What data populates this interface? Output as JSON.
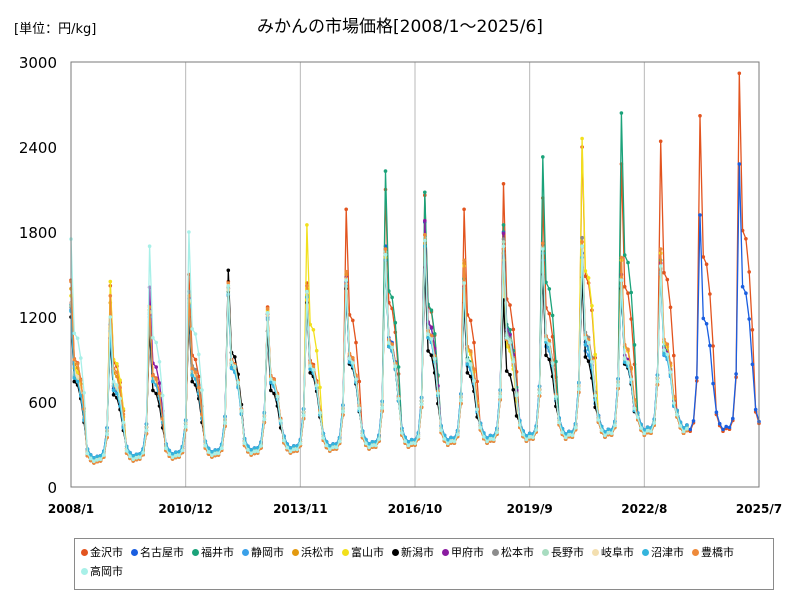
{
  "unit_label": "[単位：円/kg]",
  "chart_data": {
    "type": "line",
    "title": "みかんの市場価格[2008/1～2025/6]",
    "xlabel": "",
    "ylabel": "",
    "ylim": [
      0,
      3000
    ],
    "yticks": [
      0,
      600,
      1200,
      1800,
      2400,
      3000
    ],
    "xticks": [
      "2008/1",
      "2010/12",
      "2013/11",
      "2016/10",
      "2019/9",
      "2022/8",
      "2025/7"
    ],
    "grid": "vertical",
    "legend_position": "bottom",
    "x_start": "2008/1",
    "x_end": "2025/7",
    "series": [
      {
        "name": "金沢市",
        "color": "#e2541f",
        "peaks": [
          [
            2008,
            1460
          ],
          [
            2009,
            1420
          ],
          [
            2010,
            1280
          ],
          [
            2011,
            1500
          ],
          [
            2012,
            1450
          ],
          [
            2013,
            1270
          ],
          [
            2014,
            1440
          ],
          [
            2015,
            1960
          ],
          [
            2016,
            2100
          ],
          [
            2017,
            2060
          ],
          [
            2018,
            1960
          ],
          [
            2019,
            2140
          ],
          [
            2020,
            2040
          ],
          [
            2021,
            2400
          ],
          [
            2022,
            2280
          ],
          [
            2023,
            2440
          ],
          [
            2024,
            2620
          ],
          [
            2025,
            2920
          ]
        ]
      },
      {
        "name": "名古屋市",
        "color": "#1a5ee0",
        "peaks": [
          [
            2008,
            1290
          ],
          [
            2009,
            1120
          ],
          [
            2010,
            1220
          ],
          [
            2011,
            1300
          ],
          [
            2012,
            1400
          ],
          [
            2013,
            1200
          ],
          [
            2014,
            1380
          ],
          [
            2015,
            1450
          ],
          [
            2016,
            1700
          ],
          [
            2017,
            1870
          ],
          [
            2018,
            1400
          ],
          [
            2019,
            1800
          ],
          [
            2020,
            1700
          ],
          [
            2021,
            1650
          ],
          [
            2022,
            1470
          ],
          [
            2023,
            1560
          ],
          [
            2024,
            1920
          ],
          [
            2025,
            2280
          ]
        ]
      },
      {
        "name": "福井市",
        "color": "#1ba37a",
        "peaks": [
          [
            2008,
            1280
          ],
          [
            2009,
            1180
          ],
          [
            2010,
            1250
          ],
          [
            2011,
            1300
          ],
          [
            2012,
            1380
          ],
          [
            2013,
            1220
          ],
          [
            2014,
            1360
          ],
          [
            2015,
            1470
          ],
          [
            2016,
            2230
          ],
          [
            2017,
            2080
          ],
          [
            2018,
            1470
          ],
          [
            2019,
            1850
          ],
          [
            2020,
            2330
          ],
          [
            2021,
            1700
          ],
          [
            2022,
            2640
          ],
          [
            2023,
            1600
          ]
        ]
      },
      {
        "name": "静岡市",
        "color": "#3aa0e8",
        "peaks": [
          [
            2008,
            1250
          ],
          [
            2009,
            1100
          ],
          [
            2010,
            1200
          ],
          [
            2011,
            1280
          ],
          [
            2012,
            1350
          ],
          [
            2013,
            1180
          ],
          [
            2014,
            1350
          ],
          [
            2015,
            1400
          ],
          [
            2016,
            1600
          ],
          [
            2017,
            1700
          ],
          [
            2018,
            1380
          ],
          [
            2019,
            1650
          ],
          [
            2020,
            1600
          ],
          [
            2021,
            1550
          ],
          [
            2022,
            1400
          ],
          [
            2023,
            1500
          ]
        ]
      },
      {
        "name": "浜松市",
        "color": "#e39a10",
        "peaks": [
          [
            2008,
            1400
          ],
          [
            2009,
            1300
          ],
          [
            2010,
            1250
          ],
          [
            2011,
            1330
          ],
          [
            2012,
            1420
          ],
          [
            2013,
            1250
          ],
          [
            2014,
            1400
          ],
          [
            2015,
            1500
          ],
          [
            2016,
            1650
          ],
          [
            2017,
            1750
          ],
          [
            2018,
            1580
          ],
          [
            2019,
            1650
          ],
          [
            2020,
            1700
          ],
          [
            2021,
            1700
          ],
          [
            2022,
            1600
          ],
          [
            2023,
            1650
          ]
        ]
      },
      {
        "name": "富山市",
        "color": "#f2e01c",
        "peaks": [
          [
            2008,
            1350
          ],
          [
            2009,
            1450
          ],
          [
            2010,
            1250
          ],
          [
            2011,
            1300
          ],
          [
            2012,
            1400
          ],
          [
            2013,
            1240
          ],
          [
            2014,
            1850
          ],
          [
            2015,
            1480
          ],
          [
            2016,
            1620
          ],
          [
            2017,
            1720
          ],
          [
            2018,
            1560
          ],
          [
            2019,
            1600
          ],
          [
            2020,
            1650
          ],
          [
            2021,
            2460
          ],
          [
            2022,
            1600
          ],
          [
            2023,
            1650
          ]
        ]
      },
      {
        "name": "新潟市",
        "color": "#000000",
        "peaks": [
          [
            2008,
            1200
          ],
          [
            2009,
            1050
          ],
          [
            2010,
            1100
          ],
          [
            2011,
            1200
          ],
          [
            2012,
            1530
          ],
          [
            2013,
            1100
          ],
          [
            2014,
            1300
          ],
          [
            2015,
            1400
          ],
          [
            2016,
            1600
          ],
          [
            2017,
            1550
          ],
          [
            2018,
            1300
          ],
          [
            2019,
            1320
          ],
          [
            2020,
            1500
          ],
          [
            2021,
            1480
          ],
          [
            2022,
            1400
          ],
          [
            2023,
            1550
          ]
        ]
      },
      {
        "name": "甲府市",
        "color": "#8a1ba0",
        "peaks": [
          [
            2008,
            1300
          ],
          [
            2009,
            1150
          ],
          [
            2010,
            1410
          ],
          [
            2011,
            1330
          ],
          [
            2012,
            1400
          ],
          [
            2013,
            1220
          ],
          [
            2014,
            1380
          ],
          [
            2015,
            1480
          ],
          [
            2016,
            1680
          ],
          [
            2017,
            1880
          ],
          [
            2018,
            1420
          ],
          [
            2019,
            1790
          ],
          [
            2020,
            1720
          ],
          [
            2021,
            1690
          ],
          [
            2022,
            1500
          ],
          [
            2023,
            1580
          ]
        ]
      },
      {
        "name": "松本市",
        "color": "#8c8c8c",
        "peaks": [
          [
            2008,
            1270
          ],
          [
            2009,
            1150
          ],
          [
            2010,
            1230
          ],
          [
            2011,
            1380
          ],
          [
            2012,
            1410
          ],
          [
            2013,
            1220
          ],
          [
            2014,
            1380
          ],
          [
            2015,
            1470
          ],
          [
            2016,
            1650
          ],
          [
            2017,
            1780
          ],
          [
            2018,
            1450
          ],
          [
            2019,
            1750
          ],
          [
            2020,
            1700
          ],
          [
            2021,
            1760
          ],
          [
            2022,
            1450
          ],
          [
            2023,
            1540
          ]
        ]
      },
      {
        "name": "長野市",
        "color": "#a8dcc0",
        "peaks": [
          [
            2008,
            1280
          ],
          [
            2009,
            1160
          ],
          [
            2010,
            1240
          ],
          [
            2011,
            1320
          ],
          [
            2012,
            1400
          ],
          [
            2013,
            1230
          ],
          [
            2014,
            1370
          ],
          [
            2015,
            1460
          ],
          [
            2016,
            1660
          ],
          [
            2017,
            1760
          ],
          [
            2018,
            1450
          ],
          [
            2019,
            1730
          ],
          [
            2020,
            1690
          ],
          [
            2021,
            1700
          ],
          [
            2022,
            1460
          ],
          [
            2023,
            1550
          ]
        ]
      },
      {
        "name": "岐阜市",
        "color": "#f3dfb0",
        "peaks": [
          [
            2008,
            1300
          ],
          [
            2009,
            1180
          ],
          [
            2010,
            1230
          ],
          [
            2011,
            1310
          ],
          [
            2012,
            1390
          ],
          [
            2013,
            1210
          ],
          [
            2014,
            1370
          ],
          [
            2015,
            1470
          ],
          [
            2016,
            1640
          ],
          [
            2017,
            1740
          ],
          [
            2018,
            1430
          ],
          [
            2019,
            1700
          ],
          [
            2020,
            1680
          ],
          [
            2021,
            1690
          ],
          [
            2022,
            1470
          ],
          [
            2023,
            1560
          ]
        ]
      },
      {
        "name": "沼津市",
        "color": "#34b4dc",
        "peaks": [
          [
            2008,
            1240
          ],
          [
            2009,
            1100
          ],
          [
            2010,
            1200
          ],
          [
            2011,
            1270
          ],
          [
            2012,
            1360
          ],
          [
            2013,
            1190
          ],
          [
            2014,
            1340
          ],
          [
            2015,
            1420
          ],
          [
            2016,
            1600
          ],
          [
            2017,
            1700
          ],
          [
            2018,
            1400
          ],
          [
            2019,
            1680
          ],
          [
            2020,
            1650
          ],
          [
            2021,
            1620
          ],
          [
            2022,
            1420
          ],
          [
            2023,
            1520
          ]
        ]
      },
      {
        "name": "豊橋市",
        "color": "#ee8a3a",
        "peaks": [
          [
            2008,
            1450
          ],
          [
            2009,
            1350
          ],
          [
            2010,
            1270
          ],
          [
            2011,
            1350
          ],
          [
            2012,
            1440
          ],
          [
            2013,
            1260
          ],
          [
            2014,
            1420
          ],
          [
            2015,
            1520
          ],
          [
            2016,
            1680
          ],
          [
            2017,
            1780
          ],
          [
            2018,
            1600
          ],
          [
            2019,
            1680
          ],
          [
            2020,
            1720
          ],
          [
            2021,
            1730
          ],
          [
            2022,
            1620
          ],
          [
            2023,
            1680
          ]
        ]
      },
      {
        "name": "高岡市",
        "color": "#a8f0e8",
        "peaks": [
          [
            2008,
            1750
          ],
          [
            2009,
            1200
          ],
          [
            2010,
            1700
          ],
          [
            2011,
            1800
          ],
          [
            2012,
            1420
          ],
          [
            2013,
            1230
          ],
          [
            2014,
            1380
          ],
          [
            2015,
            1460
          ],
          [
            2016,
            1640
          ],
          [
            2017,
            1740
          ],
          [
            2018,
            1440
          ],
          [
            2019,
            1700
          ],
          [
            2020,
            1680
          ],
          [
            2021,
            1700
          ],
          [
            2022,
            1460
          ],
          [
            2023,
            1560
          ]
        ]
      }
    ]
  }
}
